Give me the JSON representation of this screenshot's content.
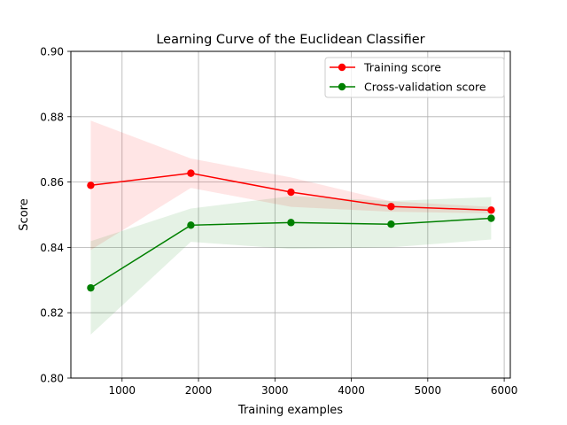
{
  "chart_data": {
    "type": "line",
    "title": "Learning Curve of the Euclidean Classifier",
    "xlabel": "Training examples",
    "ylabel": "Score",
    "xlim": [
      330,
      6080
    ],
    "ylim": [
      0.8,
      0.9
    ],
    "x_ticks": [
      1000,
      2000,
      3000,
      4000,
      5000,
      6000
    ],
    "y_ticks": [
      0.8,
      0.82,
      0.84,
      0.86,
      0.88,
      0.9
    ],
    "x_tick_labels": [
      "1000",
      "2000",
      "3000",
      "4000",
      "5000",
      "6000"
    ],
    "y_tick_labels": [
      "0.80",
      "0.82",
      "0.84",
      "0.86",
      "0.88",
      "0.90"
    ],
    "grid": true,
    "legend_position": "top-right",
    "x": [
      590,
      1900,
      3210,
      4520,
      5830
    ],
    "series": [
      {
        "name": "Training score",
        "color": "#ff0000",
        "band_color": "#ff0000",
        "values": [
          0.859,
          0.8627,
          0.8569,
          0.8525,
          0.8514
        ],
        "upper": [
          0.8788,
          0.8672,
          0.8614,
          0.8541,
          0.8524
        ],
        "lower": [
          0.8392,
          0.8582,
          0.8524,
          0.8509,
          0.8504
        ]
      },
      {
        "name": "Cross-validation score",
        "color": "#008000",
        "band_color": "#008000",
        "values": [
          0.8276,
          0.8468,
          0.8476,
          0.8471,
          0.8489
        ],
        "upper": [
          0.8419,
          0.8519,
          0.8557,
          0.8542,
          0.8554
        ],
        "lower": [
          0.8133,
          0.8417,
          0.8395,
          0.84,
          0.8424
        ]
      }
    ]
  }
}
